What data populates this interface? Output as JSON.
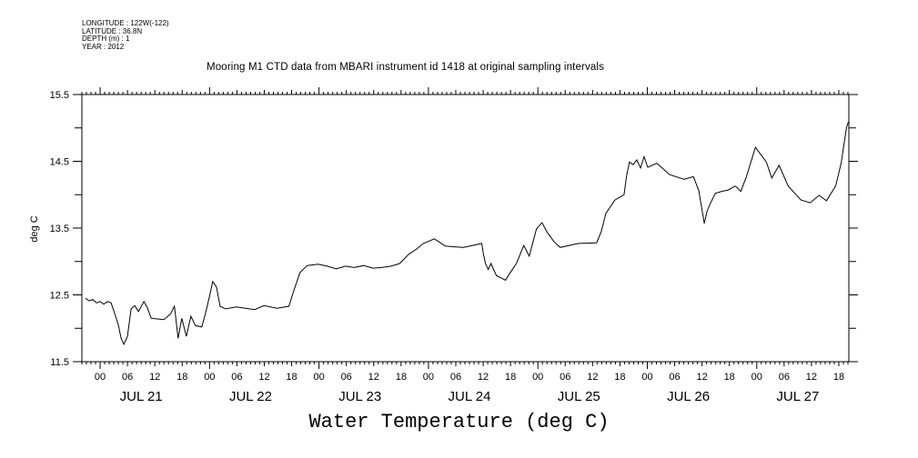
{
  "metadata": {
    "longitude": "LONGITUDE : 122W(-122)",
    "latitude": "LATITUDE : 36.8N",
    "depth": "DEPTH (m) : 1",
    "year": "YEAR : 2012"
  },
  "chart_data": {
    "type": "line",
    "title": "Mooring M1 CTD data from MBARI instrument id 1418 at original sampling intervals",
    "xlabel": "Water Temperature (deg C)",
    "ylabel": "deg C",
    "ylim": [
      11.5,
      15.5
    ],
    "yticks": [
      "15.5",
      "14.5",
      "13.5",
      "12.5",
      "11.5"
    ],
    "y_minor_ticks": [
      15.0,
      14.0,
      13.0,
      12.0
    ],
    "x_unit": "hours since JUL 21 00:00",
    "xlim": [
      -4,
      164.2
    ],
    "x_hour_labels": [
      "00",
      "06",
      "12",
      "18"
    ],
    "x_days": [
      "JUL 21",
      "JUL 22",
      "JUL 23",
      "JUL 24",
      "JUL 25",
      "JUL 26",
      "JUL 27"
    ],
    "grid": false,
    "series": [
      {
        "name": "Water Temperature",
        "x": [
          -3.2,
          -2.4,
          -1.6,
          -0.8,
          0,
          0.8,
          1.6,
          2.4,
          3.2,
          4.0,
          4.6,
          5.2,
          6.0,
          6.8,
          7.6,
          8.4,
          9.6,
          10.4,
          11.2,
          12.6,
          14.0,
          15.5,
          16.3,
          17.1,
          17.9,
          18.9,
          19.9,
          20.9,
          22.3,
          23.1,
          23.9,
          24.7,
          25.5,
          26.3,
          27.5,
          29.9,
          33.9,
          35.9,
          38.8,
          41.4,
          42.6,
          43.8,
          45.4,
          47.8,
          49.8,
          51.8,
          53.8,
          55.8,
          57.8,
          59.8,
          61.8,
          63.8,
          65.7,
          67.7,
          69.3,
          70.9,
          73.3,
          75.7,
          77.7,
          79.7,
          81.7,
          83.7,
          84.1,
          84.5,
          85.1,
          85.7,
          86.9,
          88.9,
          90.1,
          91.3,
          92.9,
          94.1,
          95.7,
          96.9,
          98.1,
          99.5,
          100.9,
          104.9,
          108.9,
          109.9,
          110.9,
          112.9,
          114.9,
          115.5,
          116.1,
          116.9,
          117.7,
          118.5,
          119.3,
          120.1,
          122.1,
          124.9,
          128.1,
          130.1,
          131.3,
          132.5,
          133.1,
          133.7,
          134.9,
          136.3,
          137.7,
          139.3,
          140.5,
          141.7,
          143.7,
          144.9,
          146.1,
          147.3,
          148.9,
          150.9,
          153.7,
          155.7,
          157.7,
          159.3,
          161.3,
          162.5,
          163.7,
          164.1
        ],
        "y": [
          12.45,
          12.41,
          12.43,
          12.38,
          12.4,
          12.36,
          12.4,
          12.38,
          12.22,
          12.05,
          11.85,
          11.76,
          11.88,
          12.29,
          12.34,
          12.25,
          12.4,
          12.3,
          12.15,
          12.14,
          12.13,
          12.22,
          12.33,
          11.85,
          12.15,
          11.88,
          12.18,
          12.04,
          12.02,
          12.22,
          12.45,
          12.7,
          12.62,
          12.33,
          12.29,
          12.32,
          12.28,
          12.34,
          12.3,
          12.33,
          12.59,
          12.83,
          12.94,
          12.96,
          12.93,
          12.89,
          12.93,
          12.91,
          12.94,
          12.9,
          12.91,
          12.93,
          12.97,
          13.11,
          13.18,
          13.27,
          13.34,
          13.23,
          13.22,
          13.21,
          13.24,
          13.27,
          13.1,
          12.97,
          12.88,
          12.97,
          12.79,
          12.72,
          12.85,
          12.97,
          13.24,
          13.08,
          13.49,
          13.58,
          13.43,
          13.3,
          13.21,
          13.27,
          13.28,
          13.45,
          13.72,
          13.92,
          14.0,
          14.3,
          14.49,
          14.45,
          14.52,
          14.4,
          14.57,
          14.41,
          14.47,
          14.3,
          14.23,
          14.27,
          14.06,
          13.57,
          13.75,
          13.85,
          14.02,
          14.05,
          14.07,
          14.13,
          14.05,
          14.26,
          14.71,
          14.6,
          14.49,
          14.25,
          14.44,
          14.13,
          13.92,
          13.88,
          13.99,
          13.91,
          14.13,
          14.47,
          15.01,
          15.09
        ]
      }
    ]
  }
}
